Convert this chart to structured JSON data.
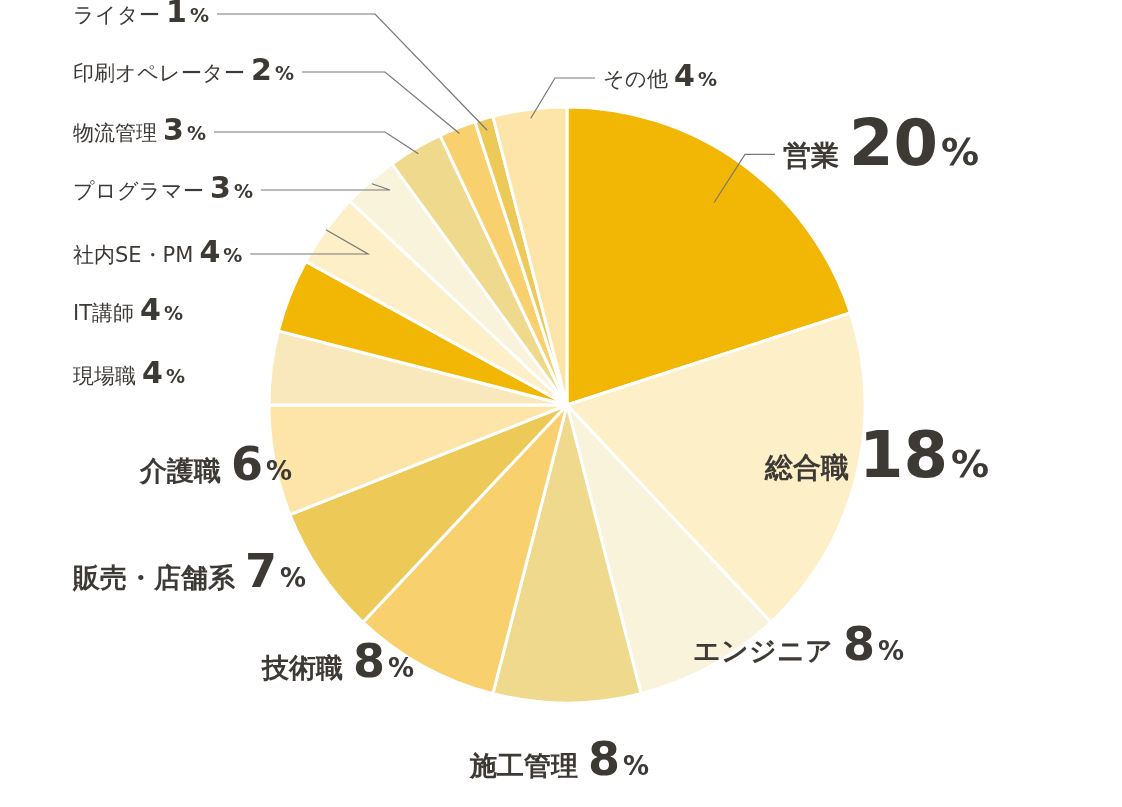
{
  "chart_data": {
    "type": "pie",
    "categories": [
      "営業",
      "総合職",
      "エンジニア",
      "施工管理",
      "技術職",
      "販売・店舗系",
      "介護職",
      "現場職",
      "IT講師",
      "社内SE・PM",
      "プログラマー",
      "物流管理",
      "印刷オペレーター",
      "ライター",
      "その他"
    ],
    "values": [
      20,
      18,
      8,
      8,
      8,
      7,
      6,
      4,
      4,
      4,
      3,
      3,
      2,
      1,
      4
    ],
    "value_labels": [
      "20%",
      "18%",
      "8%",
      "8%",
      "8%",
      "7%",
      "6%",
      "4%",
      "4%",
      "4%",
      "3%",
      "3%",
      "2%",
      "1%",
      "4%"
    ],
    "colors": [
      "#f2b705",
      "#fdf0c8",
      "#faf3dc",
      "#efd98c",
      "#f9d06e",
      "#edc958",
      "#fde4a8",
      "#f8e8bb",
      "#f2b705",
      "#fdf0c8",
      "#faf3dc",
      "#efd98c",
      "#f9d06e",
      "#edc958",
      "#fde4a8"
    ]
  }
}
